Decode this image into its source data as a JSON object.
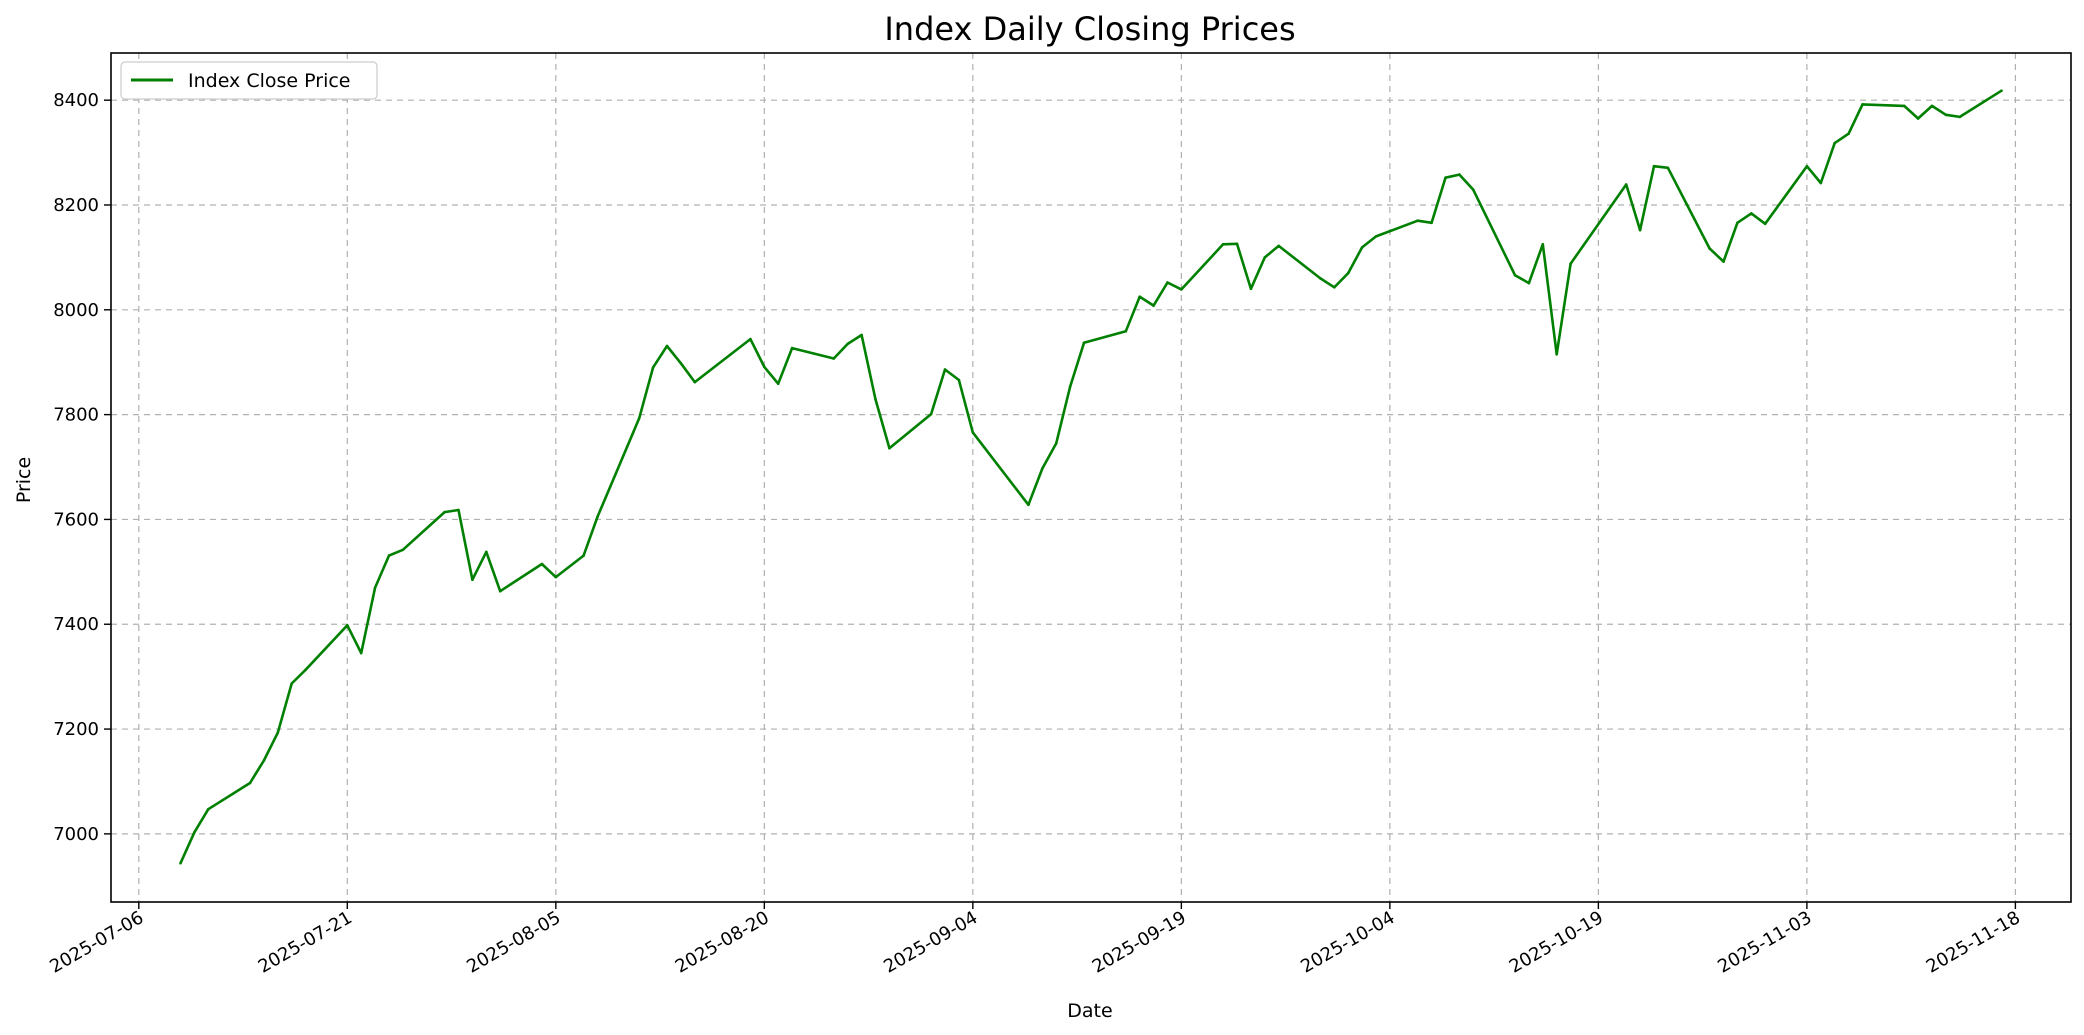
{
  "chart_data": {
    "type": "line",
    "title": "Index Daily Closing Prices",
    "xlabel": "Date",
    "ylabel": "Price",
    "xlim": [
      "2025-07-04",
      "2025-11-22"
    ],
    "ylim": [
      6870,
      8490
    ],
    "x_ticks": [
      "2025-07-06",
      "2025-07-21",
      "2025-08-05",
      "2025-08-20",
      "2025-09-04",
      "2025-09-19",
      "2025-10-04",
      "2025-10-19",
      "2025-11-03",
      "2025-11-18"
    ],
    "y_ticks": [
      7000,
      7200,
      7400,
      7600,
      7800,
      8000,
      8200,
      8400
    ],
    "grid": true,
    "legend_position": "top-left",
    "colors": {
      "series": "#008000",
      "grid": "#b0b0b0",
      "axes": "#000000"
    },
    "series": [
      {
        "name": "Index Close Price",
        "x": [
          "2025-07-09",
          "2025-07-10",
          "2025-07-11",
          "2025-07-14",
          "2025-07-15",
          "2025-07-16",
          "2025-07-17",
          "2025-07-18",
          "2025-07-21",
          "2025-07-22",
          "2025-07-23",
          "2025-07-24",
          "2025-07-25",
          "2025-07-28",
          "2025-07-29",
          "2025-07-30",
          "2025-07-31",
          "2025-08-01",
          "2025-08-04",
          "2025-08-05",
          "2025-08-07",
          "2025-08-08",
          "2025-08-11",
          "2025-08-12",
          "2025-08-13",
          "2025-08-14",
          "2025-08-15",
          "2025-08-19",
          "2025-08-20",
          "2025-08-21",
          "2025-08-22",
          "2025-08-25",
          "2025-08-26",
          "2025-08-27",
          "2025-08-28",
          "2025-08-29",
          "2025-09-01",
          "2025-09-02",
          "2025-09-03",
          "2025-09-04",
          "2025-09-08",
          "2025-09-09",
          "2025-09-10",
          "2025-09-11",
          "2025-09-12",
          "2025-09-15",
          "2025-09-16",
          "2025-09-17",
          "2025-09-18",
          "2025-09-19",
          "2025-09-22",
          "2025-09-23",
          "2025-09-24",
          "2025-09-25",
          "2025-09-26",
          "2025-09-29",
          "2025-09-30",
          "2025-10-01",
          "2025-10-02",
          "2025-10-03",
          "2025-10-06",
          "2025-10-07",
          "2025-10-08",
          "2025-10-09",
          "2025-10-10",
          "2025-10-13",
          "2025-10-14",
          "2025-10-15",
          "2025-10-16",
          "2025-10-17",
          "2025-10-21",
          "2025-10-22",
          "2025-10-23",
          "2025-10-24",
          "2025-10-27",
          "2025-10-28",
          "2025-10-29",
          "2025-10-30",
          "2025-10-31",
          "2025-11-03",
          "2025-11-04",
          "2025-11-05",
          "2025-11-06",
          "2025-11-07",
          "2025-11-10",
          "2025-11-11",
          "2025-11-12",
          "2025-11-13",
          "2025-11-14",
          "2025-11-17"
        ],
        "values": [
          6944,
          7003,
          7047,
          7097,
          7140,
          7193,
          7287,
          7313,
          7398,
          7345,
          7470,
          7531,
          7542,
          7614,
          7618,
          7485,
          7538,
          7463,
          7515,
          7490,
          7531,
          7605,
          7793,
          7890,
          7931,
          7898,
          7862,
          7944,
          7891,
          7859,
          7927,
          7907,
          7935,
          7952,
          7829,
          7736,
          7801,
          7886,
          7866,
          7766,
          7628,
          7697,
          7745,
          7853,
          7937,
          7959,
          8025,
          8008,
          8052,
          8039,
          8125,
          8126,
          8040,
          8100,
          8122,
          8060,
          8043,
          8070,
          8119,
          8140,
          8170,
          8166,
          8252,
          8258,
          8229,
          8066,
          8051,
          8125,
          7915,
          8088,
          8239,
          8152,
          8274,
          8271,
          8117,
          8092,
          8166,
          8184,
          8164,
          8274,
          8242,
          8318,
          8336,
          8392,
          8389,
          8365,
          8389,
          8372,
          8368,
          8418
        ]
      }
    ]
  }
}
